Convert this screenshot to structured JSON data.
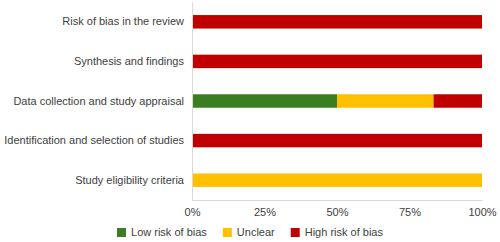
{
  "chart_data": {
    "type": "bar",
    "orientation": "horizontal",
    "stacked": true,
    "categories": [
      "Risk of bias in the review",
      "Synthesis and findings",
      "Data collection and study appraisal",
      "Identification and selection of studies",
      "Study eligibility criteria"
    ],
    "series": [
      {
        "name": "Low risk of bias",
        "color": "#3a7d22",
        "values": [
          0,
          0,
          50,
          0,
          0
        ]
      },
      {
        "name": "Unclear",
        "color": "#ffc000",
        "values": [
          0,
          0,
          33.3,
          0,
          100
        ]
      },
      {
        "name": "High risk of bias",
        "color": "#c00000",
        "values": [
          100,
          100,
          16.7,
          100,
          0
        ]
      }
    ],
    "xlim": [
      0,
      100
    ],
    "xticks": [
      {
        "value": 0,
        "label": "0%"
      },
      {
        "value": 25,
        "label": "25%"
      },
      {
        "value": 50,
        "label": "50%"
      },
      {
        "value": 75,
        "label": "75%"
      },
      {
        "value": 100,
        "label": "100%"
      }
    ],
    "grid": false,
    "legend": "bottom"
  }
}
